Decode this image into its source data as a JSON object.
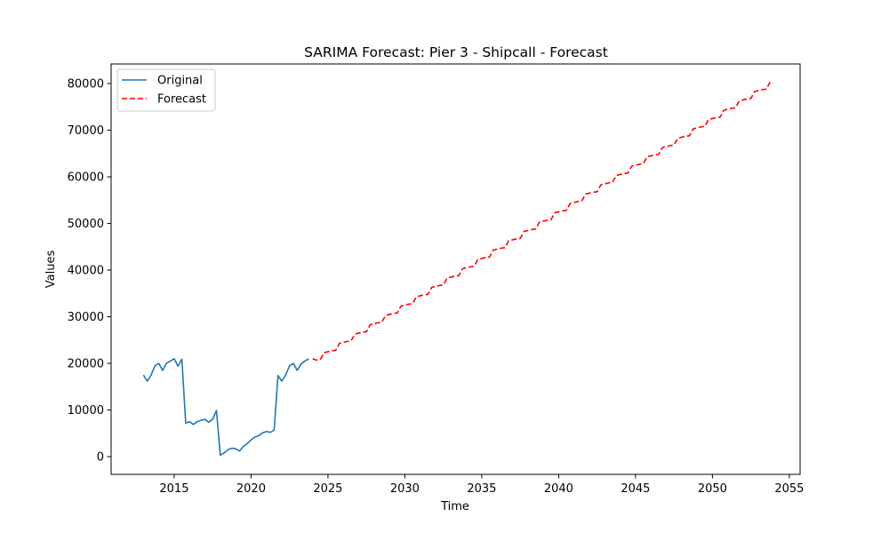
{
  "chart_data": {
    "type": "line",
    "title": "SARIMA Forecast: Pier 3 - Shipcall - Forecast",
    "xlabel": "Time",
    "ylabel": "Values",
    "xlim": [
      2010.9,
      2055.7
    ],
    "ylim": [
      -3800,
      84200
    ],
    "xticks": [
      2015,
      2020,
      2025,
      2030,
      2035,
      2040,
      2045,
      2050,
      2055
    ],
    "yticks": [
      0,
      10000,
      20000,
      30000,
      40000,
      50000,
      60000,
      70000,
      80000
    ],
    "grid": false,
    "legend_position": "top-left",
    "series": [
      {
        "name": "Original",
        "color": "#1f77b4",
        "style": "solid",
        "x": [
          2013.0,
          2013.25,
          2013.5,
          2013.75,
          2014.0,
          2014.25,
          2014.5,
          2014.75,
          2015.0,
          2015.25,
          2015.5,
          2015.75,
          2016.0,
          2016.25,
          2016.5,
          2016.75,
          2017.0,
          2017.25,
          2017.5,
          2017.75,
          2018.0,
          2018.25,
          2018.5,
          2018.75,
          2019.0,
          2019.25,
          2019.5,
          2019.75,
          2020.0,
          2020.25,
          2020.5,
          2020.75,
          2021.0,
          2021.25,
          2021.5,
          2021.75,
          2022.0,
          2022.25,
          2022.5,
          2022.75,
          2023.0,
          2023.25,
          2023.5,
          2023.75
        ],
        "values": [
          17500,
          16200,
          17500,
          19500,
          20000,
          18500,
          20000,
          20500,
          21000,
          19400,
          20900,
          7200,
          7500,
          6900,
          7500,
          7800,
          8000,
          7400,
          8000,
          9900,
          300,
          800,
          1500,
          1800,
          1700,
          1200,
          2200,
          2800,
          3600,
          4200,
          4500,
          5100,
          5400,
          5200,
          5700,
          17400,
          16200,
          17500,
          19500,
          20000,
          18500,
          19900,
          20500,
          21000
        ]
      },
      {
        "name": "Forecast",
        "color": "#ff0000",
        "style": "dashed",
        "x": [
          2024.0,
          2024.25,
          2024.5,
          2024.75,
          2025.0,
          2025.25,
          2025.5,
          2025.75,
          2026.0,
          2026.25,
          2026.5,
          2026.75,
          2027.0,
          2027.25,
          2027.5,
          2027.75,
          2028.0,
          2028.25,
          2028.5,
          2028.75,
          2029.0,
          2029.25,
          2029.5,
          2029.75,
          2030.0,
          2030.25,
          2030.5,
          2030.75,
          2031.0,
          2031.25,
          2031.5,
          2031.75,
          2032.0,
          2032.25,
          2032.5,
          2032.75,
          2033.0,
          2033.25,
          2033.5,
          2033.75,
          2034.0,
          2034.25,
          2034.5,
          2034.75,
          2035.0,
          2035.25,
          2035.5,
          2035.75,
          2036.0,
          2036.25,
          2036.5,
          2036.75,
          2037.0,
          2037.25,
          2037.5,
          2037.75,
          2038.0,
          2038.25,
          2038.5,
          2038.75,
          2039.0,
          2039.25,
          2039.5,
          2039.75,
          2040.0,
          2040.25,
          2040.5,
          2040.75,
          2041.0,
          2041.25,
          2041.5,
          2041.75,
          2042.0,
          2042.25,
          2042.5,
          2042.75,
          2043.0,
          2043.25,
          2043.5,
          2043.75,
          2044.0,
          2044.25,
          2044.5,
          2044.75,
          2045.0,
          2045.25,
          2045.5,
          2045.75,
          2046.0,
          2046.25,
          2046.5,
          2046.75,
          2047.0,
          2047.25,
          2047.5,
          2047.75,
          2048.0,
          2048.25,
          2048.5,
          2048.75,
          2049.0,
          2049.25,
          2049.5,
          2049.75,
          2050.0,
          2050.25,
          2050.5,
          2050.75,
          2051.0,
          2051.25,
          2051.5,
          2051.75,
          2052.0,
          2052.25,
          2052.5,
          2052.75,
          2053.0,
          2053.25,
          2053.5,
          2053.75
        ],
        "values": [
          21000,
          20700,
          20800,
          22300,
          22500,
          22700,
          22800,
          24300,
          24500,
          24700,
          24800,
          26300,
          26500,
          26700,
          26800,
          28300,
          28500,
          28700,
          28800,
          30300,
          30500,
          30700,
          30800,
          32300,
          32500,
          32700,
          32800,
          34300,
          34500,
          34700,
          34800,
          36300,
          36500,
          36700,
          36800,
          38300,
          38500,
          38700,
          38800,
          40300,
          40500,
          40700,
          40800,
          42300,
          42500,
          42700,
          42800,
          44300,
          44500,
          44700,
          44800,
          46300,
          46500,
          46700,
          46800,
          48300,
          48500,
          48700,
          48800,
          50300,
          50500,
          50700,
          50800,
          52300,
          52500,
          52700,
          52800,
          54300,
          54500,
          54700,
          54800,
          56300,
          56500,
          56700,
          56800,
          58300,
          58500,
          58700,
          58800,
          60300,
          60500,
          60700,
          60800,
          62300,
          62500,
          62700,
          62800,
          64300,
          64500,
          64700,
          64800,
          66300,
          66500,
          66700,
          66800,
          68300,
          68500,
          68700,
          68800,
          70300,
          70500,
          70700,
          70800,
          72300,
          72500,
          72700,
          72800,
          74300,
          74500,
          74700,
          74800,
          76300,
          76500,
          76700,
          76800,
          78300,
          78500,
          78700,
          78800,
          80300
        ]
      }
    ]
  }
}
